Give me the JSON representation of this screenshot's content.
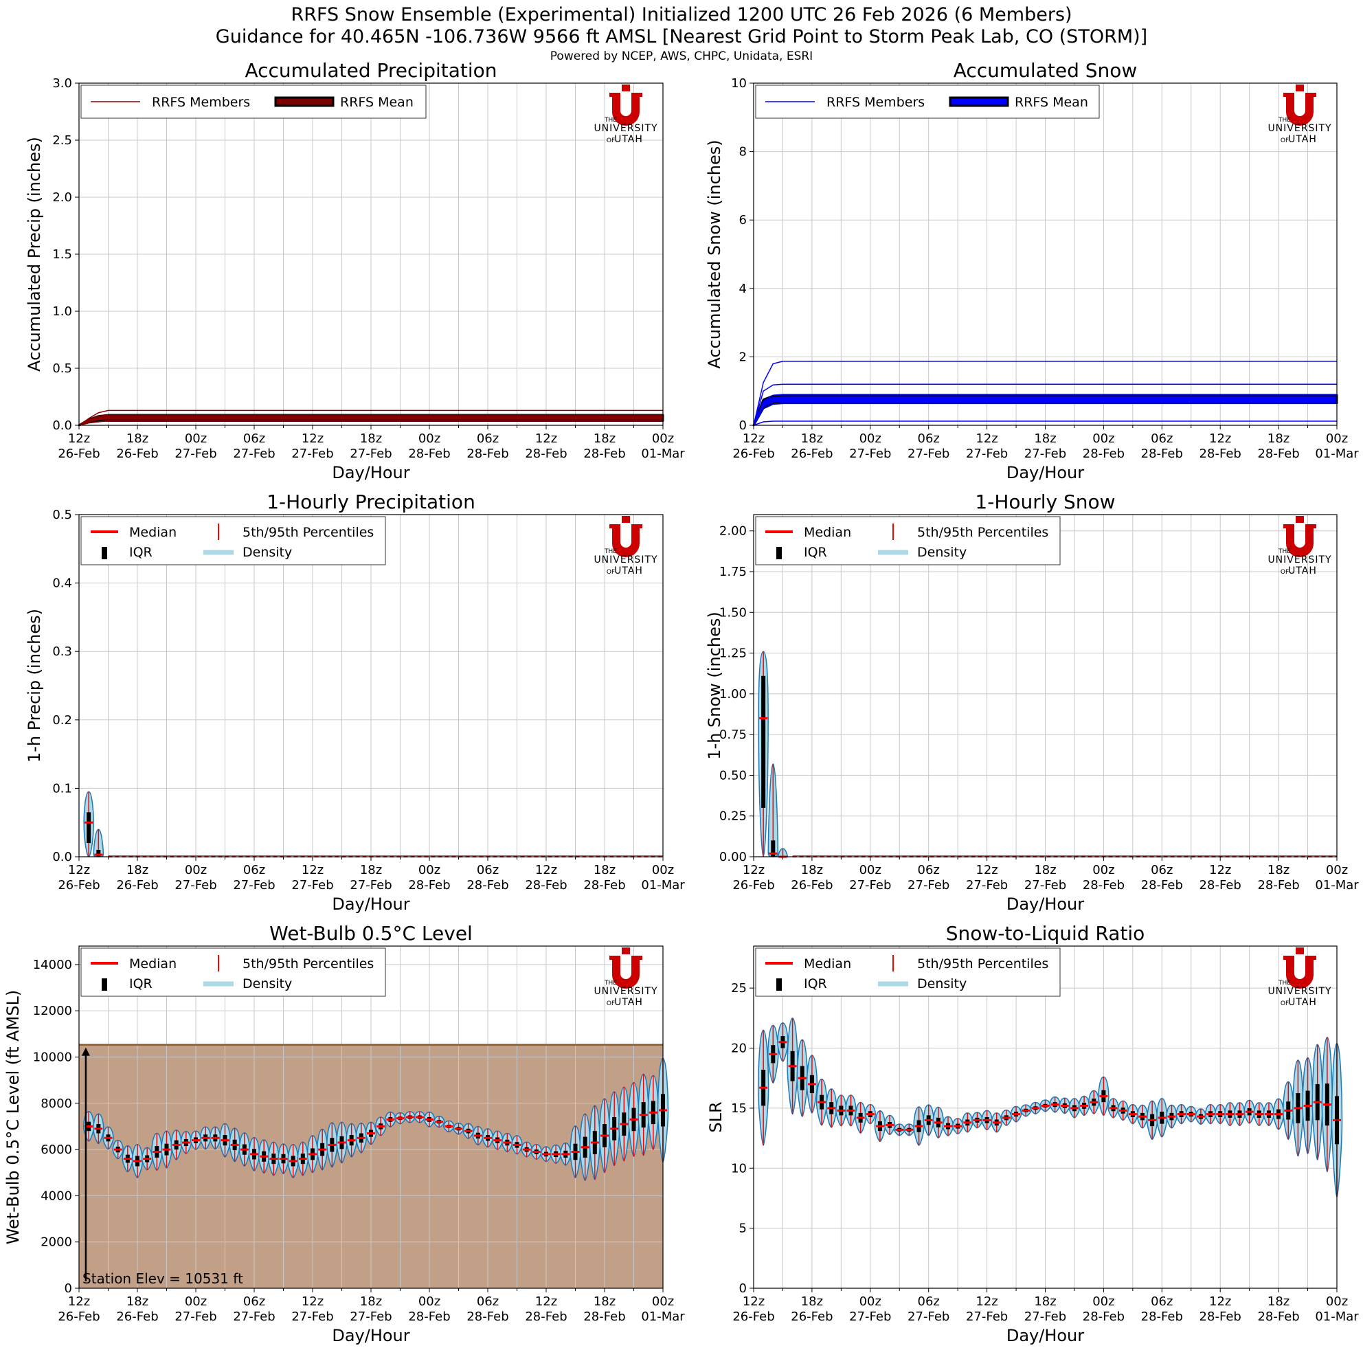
{
  "header": {
    "title_line1": "RRFS Snow Ensemble (Experimental) Initialized 1200 UTC 26 Feb 2026 (6 Members)",
    "title_line2": "Guidance for 40.465N -106.736W 9566 ft AMSL [Nearest Grid Point to Storm Peak Lab, CO (STORM)]",
    "credit": "Powered by NCEP, AWS, CHPC, Unidata, ESRI"
  },
  "logo": {
    "line1": "THE",
    "line2": "UNIVERSITY",
    "line3a": "OF",
    "line3b": "UTAH",
    "color": "#cc0000"
  },
  "colors": {
    "precip_member": "#8b0000",
    "precip_mean": "#7a0000",
    "snow_member": "#0000ff",
    "snow_mean": "#0000ff",
    "median": "#ff0000",
    "percentile": "#ff0000",
    "iqr": "#000000",
    "density": "#add8e6",
    "violin_edge": "#1f77b4",
    "terrain_fill": "#c2a088",
    "terrain_line": "#8b5a2b",
    "grid": "#c8c8c8"
  },
  "x_axis": {
    "ticks": [
      {
        "hour": "12z",
        "date": "26-Feb"
      },
      {
        "hour": "18z",
        "date": "26-Feb"
      },
      {
        "hour": "00z",
        "date": "27-Feb"
      },
      {
        "hour": "06z",
        "date": "27-Feb"
      },
      {
        "hour": "12z",
        "date": "27-Feb"
      },
      {
        "hour": "18z",
        "date": "27-Feb"
      },
      {
        "hour": "00z",
        "date": "28-Feb"
      },
      {
        "hour": "06z",
        "date": "28-Feb"
      },
      {
        "hour": "12z",
        "date": "28-Feb"
      },
      {
        "hour": "18z",
        "date": "28-Feb"
      },
      {
        "hour": "00z",
        "date": "01-Mar"
      }
    ],
    "label": "Day/Hour"
  },
  "chart_data": [
    {
      "id": "acc_precip",
      "type": "line",
      "title": "Accumulated Precipitation",
      "xlabel": "Day/Hour",
      "ylabel": "Accumulated Precip (inches)",
      "ylim": [
        0,
        3.0
      ],
      "yticks": [
        "0.0",
        "0.5",
        "1.0",
        "1.5",
        "2.0",
        "2.5",
        "3.0"
      ],
      "legend": [
        "RRFS Members",
        "RRFS Mean"
      ],
      "legend_position": "top-left",
      "grid": true,
      "x_hours": [
        0,
        1,
        2,
        3,
        60
      ],
      "members": [
        {
          "values": [
            0.0,
            0.06,
            0.11,
            0.13,
            0.13
          ]
        },
        {
          "values": [
            0.0,
            0.05,
            0.08,
            0.09,
            0.09
          ]
        },
        {
          "values": [
            0.0,
            0.04,
            0.07,
            0.08,
            0.08
          ]
        },
        {
          "values": [
            0.0,
            0.04,
            0.06,
            0.07,
            0.07
          ]
        },
        {
          "values": [
            0.0,
            0.03,
            0.05,
            0.06,
            0.06
          ]
        },
        {
          "values": [
            0.0,
            0.02,
            0.03,
            0.04,
            0.04
          ]
        }
      ],
      "mean_band": {
        "lower": [
          0.0,
          0.03,
          0.04,
          0.04,
          0.04
        ],
        "upper": [
          0.0,
          0.05,
          0.08,
          0.09,
          0.09
        ]
      }
    },
    {
      "id": "acc_snow",
      "type": "line",
      "title": "Accumulated Snow",
      "xlabel": "Day/Hour",
      "ylabel": "Accumulated Snow (inches)",
      "ylim": [
        0,
        10
      ],
      "yticks": [
        "0",
        "2",
        "4",
        "6",
        "8",
        "10"
      ],
      "legend": [
        "RRFS Members",
        "RRFS Mean"
      ],
      "legend_position": "top-left",
      "grid": true,
      "x_hours": [
        0,
        1,
        2,
        3,
        60
      ],
      "members": [
        {
          "values": [
            0.0,
            1.25,
            1.8,
            1.87,
            1.87
          ]
        },
        {
          "values": [
            0.0,
            1.0,
            1.18,
            1.2,
            1.2
          ]
        },
        {
          "values": [
            0.0,
            0.7,
            0.88,
            0.9,
            0.9
          ]
        },
        {
          "values": [
            0.0,
            0.6,
            0.78,
            0.8,
            0.8
          ]
        },
        {
          "values": [
            0.0,
            0.5,
            0.62,
            0.65,
            0.65
          ]
        },
        {
          "values": [
            0.0,
            0.1,
            0.12,
            0.12,
            0.12
          ]
        }
      ],
      "mean_band": {
        "lower": [
          0.0,
          0.5,
          0.63,
          0.65,
          0.65
        ],
        "upper": [
          0.0,
          0.75,
          0.86,
          0.88,
          0.88
        ]
      }
    },
    {
      "id": "hourly_precip",
      "type": "violin",
      "title": "1-Hourly Precipitation",
      "xlabel": "Day/Hour",
      "ylabel": "1-h Precip (inches)",
      "ylim": [
        0,
        0.5
      ],
      "yticks": [
        "0.0",
        "0.1",
        "0.2",
        "0.3",
        "0.4",
        "0.5"
      ],
      "legend": [
        "Median",
        "5th/95th Percentiles",
        "IQR",
        "Density"
      ],
      "legend_position": "top-left",
      "grid": true,
      "hours": [
        1,
        2
      ],
      "violins": [
        {
          "p5": 0.0,
          "q1": 0.02,
          "median": 0.05,
          "q3": 0.065,
          "p95": 0.095
        },
        {
          "p5": 0.0,
          "q1": 0.0,
          "median": 0.003,
          "q3": 0.01,
          "p95": 0.04
        }
      ],
      "zero_from_hour": 3,
      "zero_to_hour": 60
    },
    {
      "id": "hourly_snow",
      "type": "violin",
      "title": "1-Hourly Snow",
      "xlabel": "Day/Hour",
      "ylabel": "1-h Snow (inches)",
      "ylim": [
        0,
        2.1
      ],
      "yticks": [
        "0.00",
        "0.25",
        "0.50",
        "0.75",
        "1.00",
        "1.25",
        "1.50",
        "1.75",
        "2.00"
      ],
      "legend": [
        "Median",
        "5th/95th Percentiles",
        "IQR",
        "Density"
      ],
      "legend_position": "top-left",
      "grid": true,
      "hours": [
        1,
        2,
        3
      ],
      "violins": [
        {
          "p5": 0.0,
          "q1": 0.3,
          "median": 0.85,
          "q3": 1.11,
          "p95": 1.26
        },
        {
          "p5": 0.0,
          "q1": 0.0,
          "median": 0.02,
          "q3": 0.1,
          "p95": 0.57
        },
        {
          "p5": 0.0,
          "q1": 0.0,
          "median": 0.0,
          "q3": 0.0,
          "p95": 0.05
        }
      ],
      "zero_from_hour": 4,
      "zero_to_hour": 60
    },
    {
      "id": "wetbulb",
      "type": "violin",
      "title": "Wet-Bulb 0.5°C Level",
      "xlabel": "Day/Hour",
      "ylabel": "Wet-Bulb 0.5°C Level (ft AMSL)",
      "ylim": [
        0,
        14800
      ],
      "yticks": [
        "0",
        "2000",
        "4000",
        "6000",
        "8000",
        "10000",
        "12000",
        "14000"
      ],
      "legend": [
        "Median",
        "5th/95th Percentiles",
        "IQR",
        "Density"
      ],
      "legend_position": "top-left",
      "grid": true,
      "station_elev": 10531,
      "annotation": "Station Elev = 10531 ft",
      "hours": [
        1,
        2,
        3,
        4,
        5,
        6,
        7,
        8,
        9,
        10,
        11,
        12,
        13,
        14,
        15,
        16,
        17,
        18,
        19,
        20,
        21,
        22,
        23,
        24,
        25,
        26,
        27,
        28,
        29,
        30,
        31,
        32,
        33,
        34,
        35,
        36,
        37,
        38,
        39,
        40,
        41,
        42,
        43,
        44,
        45,
        46,
        47,
        48,
        49,
        50,
        51,
        52,
        53,
        54,
        55,
        56,
        57,
        58,
        59,
        60
      ],
      "medians": [
        7000,
        6900,
        6500,
        6000,
        5600,
        5500,
        5600,
        5900,
        6000,
        6200,
        6300,
        6400,
        6500,
        6500,
        6400,
        6200,
        6000,
        5800,
        5700,
        5600,
        5600,
        5500,
        5600,
        5800,
        6000,
        6200,
        6300,
        6400,
        6500,
        6700,
        7000,
        7300,
        7350,
        7400,
        7400,
        7300,
        7200,
        7000,
        6900,
        6800,
        6600,
        6500,
        6400,
        6300,
        6200,
        6000,
        5900,
        5800,
        5800,
        5800,
        5900,
        6100,
        6300,
        6600,
        6900,
        7100,
        7300,
        7500,
        7600,
        7700
      ],
      "spreads": [
        400,
        400,
        300,
        250,
        350,
        450,
        300,
        500,
        500,
        400,
        300,
        250,
        300,
        300,
        450,
        450,
        450,
        450,
        450,
        450,
        400,
        450,
        450,
        500,
        550,
        600,
        550,
        450,
        400,
        300,
        250,
        200,
        150,
        150,
        150,
        200,
        150,
        150,
        150,
        200,
        250,
        250,
        250,
        250,
        250,
        200,
        200,
        200,
        250,
        300,
        700,
        900,
        1000,
        1000,
        1000,
        1000,
        1000,
        1100,
        1000,
        1400
      ]
    },
    {
      "id": "slr",
      "type": "violin",
      "title": "Snow-to-Liquid Ratio",
      "xlabel": "Day/Hour",
      "ylabel": "SLR",
      "ylim": [
        0,
        28.5
      ],
      "yticks": [
        "0",
        "5",
        "10",
        "15",
        "20",
        "25"
      ],
      "legend": [
        "Median",
        "5th/95th Percentiles",
        "IQR",
        "Density"
      ],
      "legend_position": "top-left",
      "grid": true,
      "hours": [
        1,
        2,
        3,
        4,
        5,
        6,
        7,
        8,
        9,
        10,
        11,
        12,
        13,
        14,
        15,
        16,
        17,
        18,
        19,
        20,
        21,
        22,
        23,
        24,
        25,
        26,
        27,
        28,
        29,
        30,
        31,
        32,
        33,
        34,
        35,
        36,
        37,
        38,
        39,
        40,
        41,
        42,
        43,
        44,
        45,
        46,
        47,
        48,
        49,
        50,
        51,
        52,
        53,
        54,
        55,
        56,
        57,
        58,
        59,
        60
      ],
      "medians": [
        16.7,
        19.5,
        20.5,
        18.5,
        17.5,
        17.0,
        15.5,
        15.0,
        14.8,
        14.8,
        14.2,
        14.5,
        13.5,
        13.6,
        13.2,
        13.2,
        13.5,
        14.0,
        13.8,
        13.5,
        13.5,
        13.8,
        14.0,
        14.0,
        13.8,
        14.2,
        14.5,
        14.8,
        15.0,
        15.2,
        15.3,
        15.2,
        15.0,
        15.2,
        15.5,
        16.0,
        15.0,
        14.8,
        14.5,
        14.3,
        14.0,
        14.2,
        14.3,
        14.5,
        14.5,
        14.3,
        14.5,
        14.5,
        14.5,
        14.5,
        14.7,
        14.5,
        14.5,
        14.5,
        14.8,
        15.0,
        15.2,
        15.5,
        15.3,
        14.0
      ],
      "spreads": [
        3.0,
        1.5,
        1.0,
        2.5,
        2.0,
        1.5,
        1.2,
        1.0,
        0.8,
        0.8,
        0.8,
        0.5,
        0.8,
        0.5,
        0.3,
        0.3,
        1.0,
        0.8,
        0.8,
        0.5,
        0.4,
        0.5,
        0.4,
        0.5,
        0.5,
        0.4,
        0.4,
        0.3,
        0.3,
        0.3,
        0.4,
        0.4,
        0.5,
        0.5,
        0.6,
        1.0,
        0.5,
        0.5,
        0.5,
        0.6,
        1.0,
        1.0,
        0.6,
        0.5,
        0.4,
        0.4,
        0.5,
        0.5,
        0.6,
        0.6,
        0.6,
        0.6,
        0.6,
        0.8,
        1.5,
        2.5,
        2.5,
        3.0,
        3.5,
        4.0
      ]
    }
  ]
}
